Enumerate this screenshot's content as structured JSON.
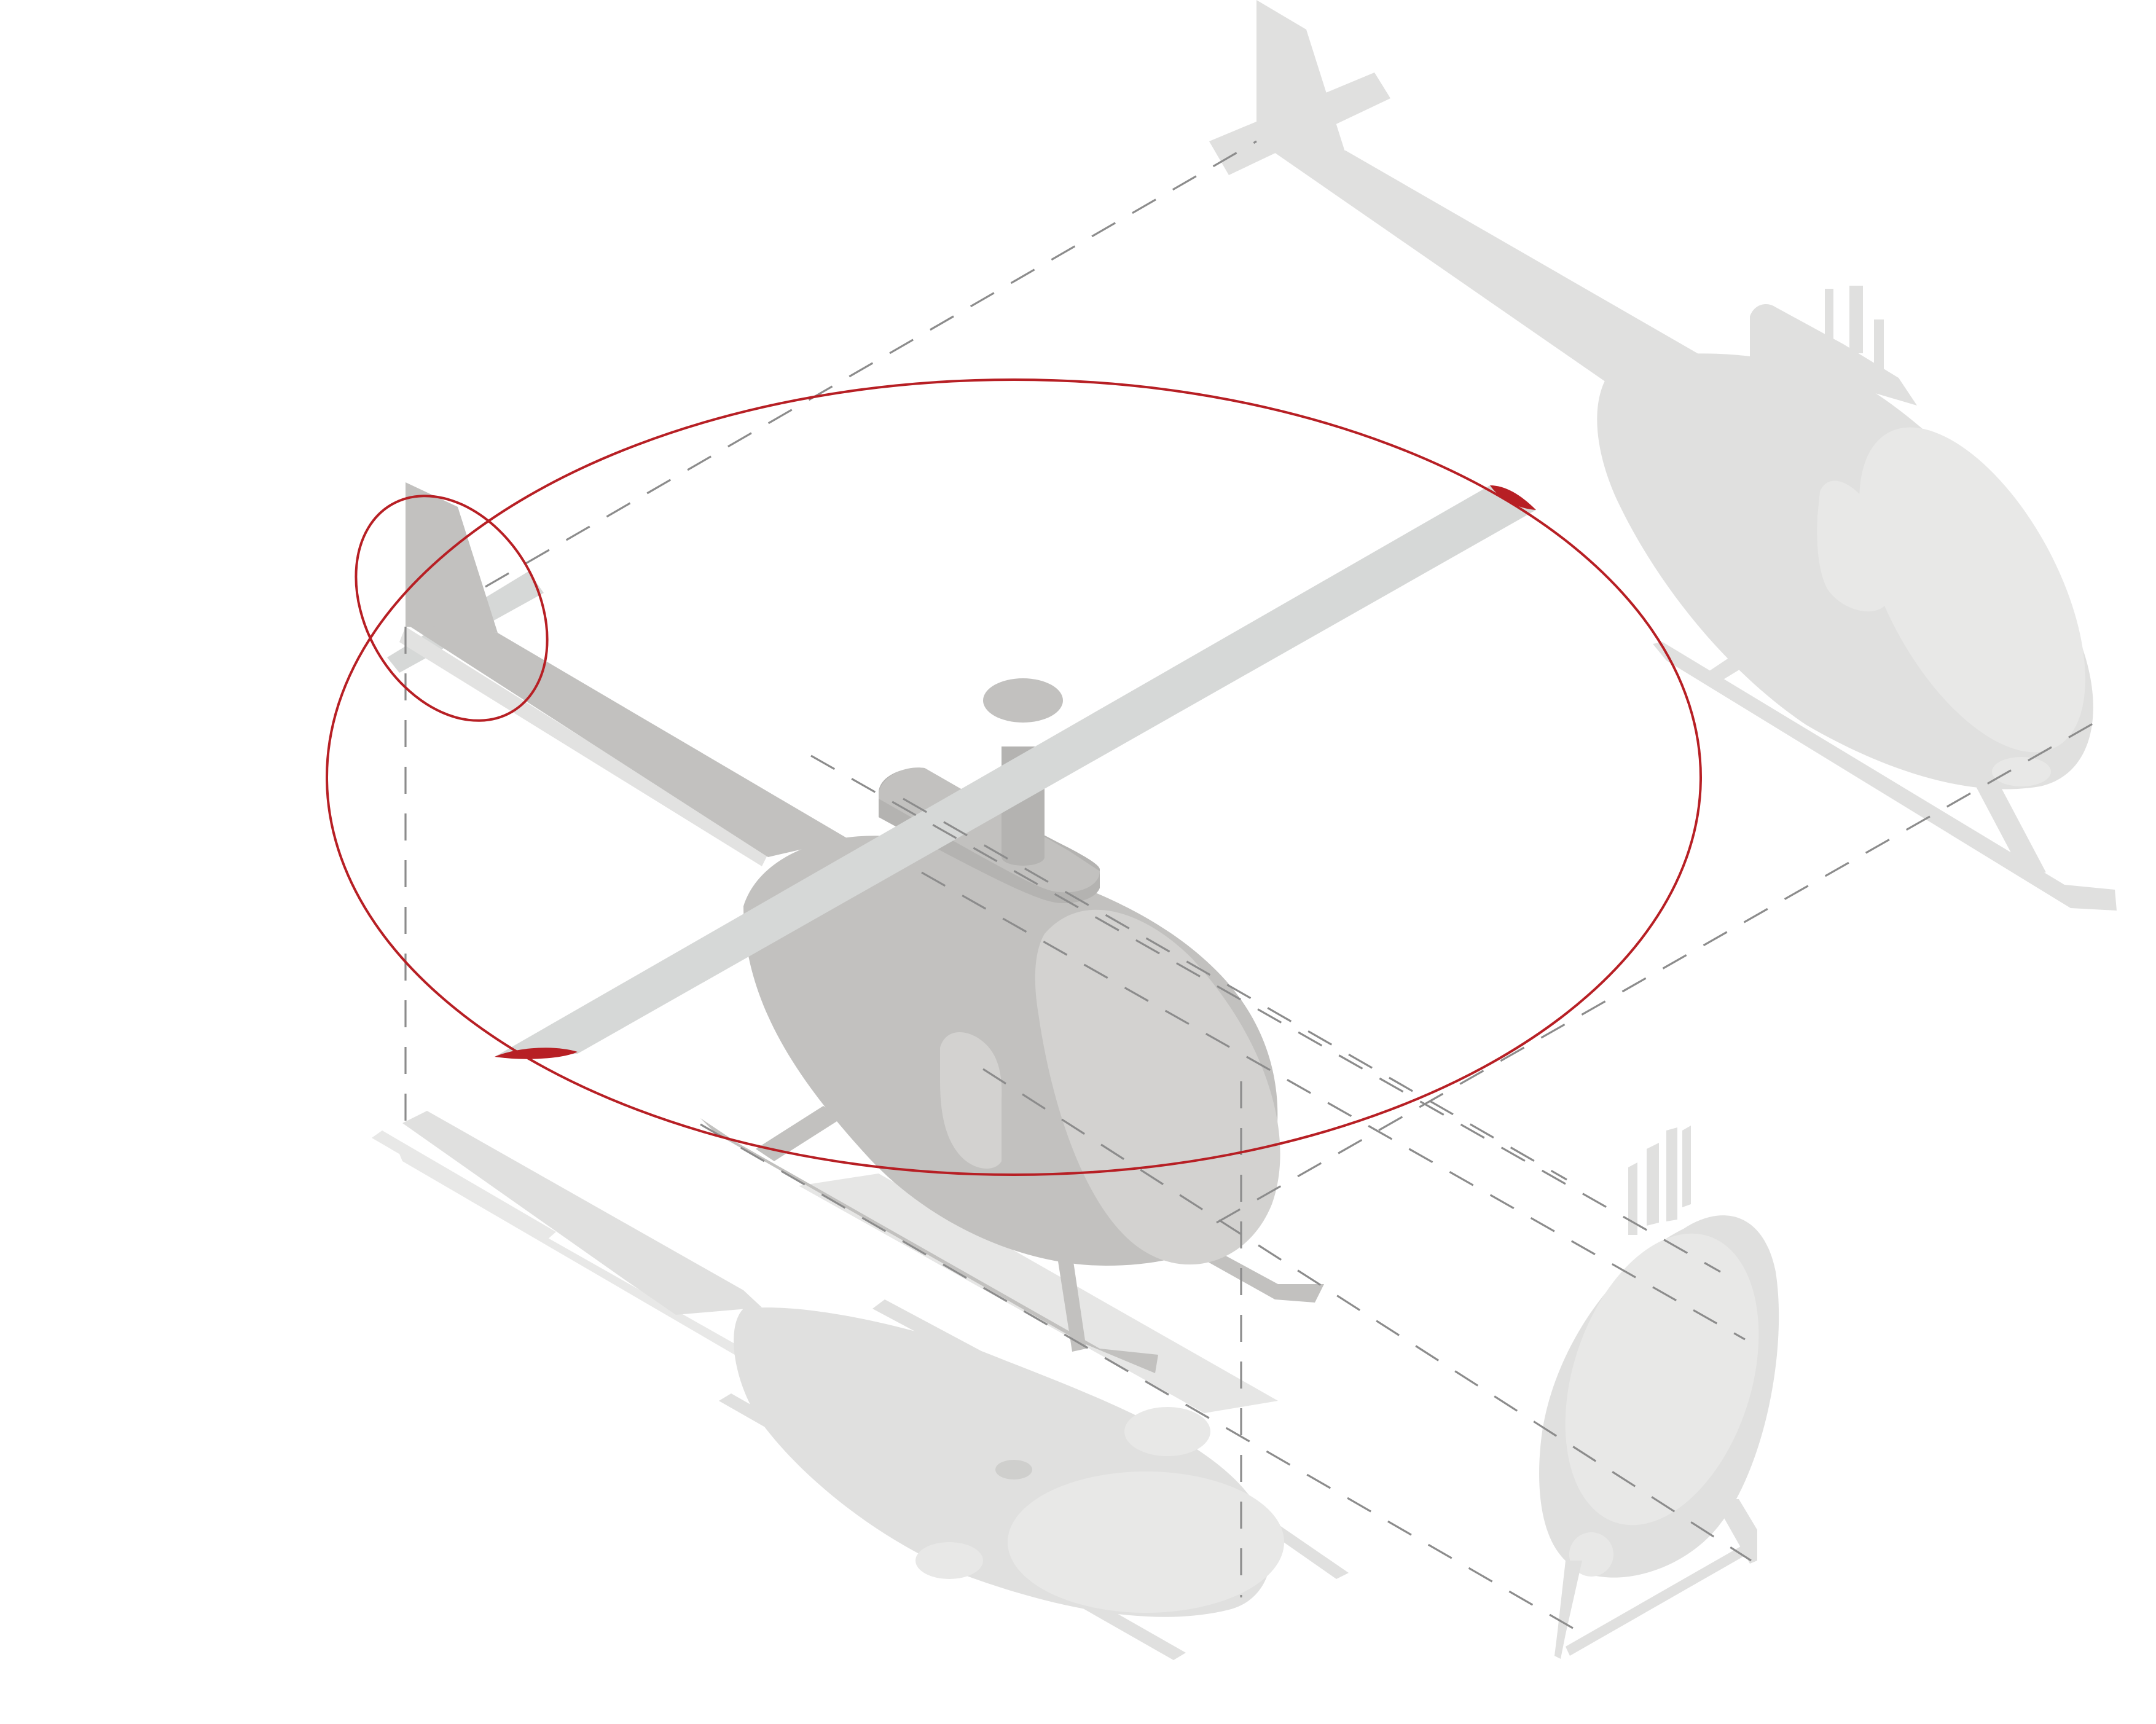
{
  "diagram": {
    "subject": "helicopter-isometric-projection",
    "views": [
      "main-view",
      "top-projection",
      "side-projection",
      "front-projection"
    ],
    "colors": {
      "main_body": "#c2c1bf",
      "main_dark": "#b4b3b1",
      "main_light": "#d6d8d7",
      "projection": "#e0e0df",
      "projection_light": "#e8e8e7",
      "accent": "#b71f24",
      "dash": "#8c8c8c",
      "background": "#ffffff"
    }
  }
}
